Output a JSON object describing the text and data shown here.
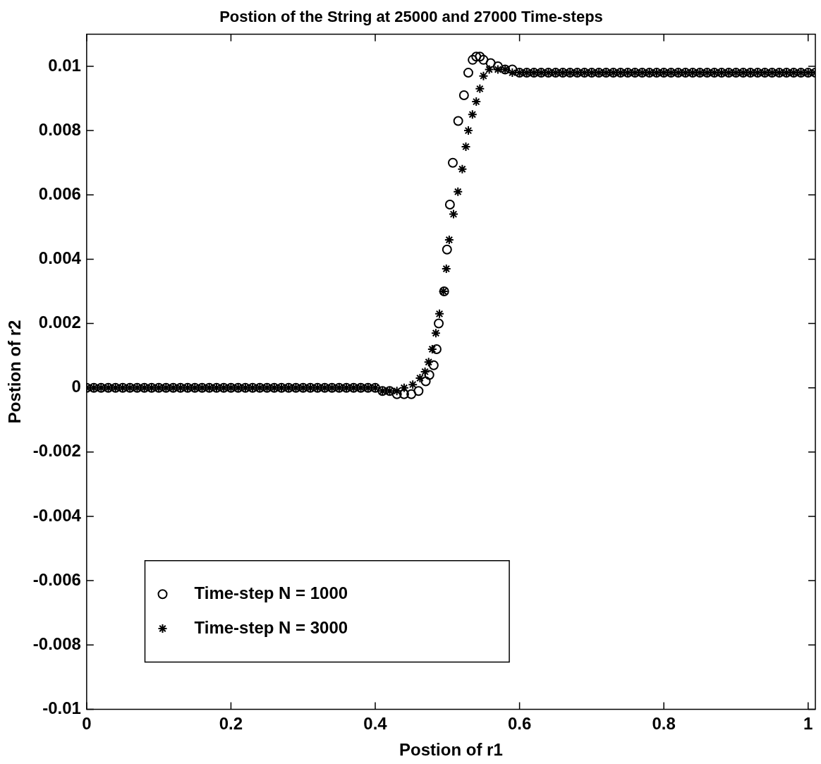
{
  "chart_data": {
    "type": "scatter",
    "title": "Postion of the String at 25000 and 27000 Time-steps",
    "xlabel": "Postion of r1",
    "ylabel": "Postion of r2",
    "xlim": [
      0,
      1.01
    ],
    "ylim": [
      -0.01,
      0.011
    ],
    "xticks": [
      0,
      0.2,
      0.4,
      0.6,
      0.8,
      1
    ],
    "yticks": [
      -0.01,
      -0.008,
      -0.006,
      -0.004,
      -0.002,
      0,
      0.002,
      0.004,
      0.006,
      0.008,
      0.01
    ],
    "grid": false,
    "legend": "bottom left",
    "series": [
      {
        "name": "Time-step N = 1000",
        "color": "#000000",
        "marker": "circle",
        "x": [
          0,
          0.01,
          0.02,
          0.03,
          0.04,
          0.05,
          0.06,
          0.07,
          0.08,
          0.09,
          0.1,
          0.11,
          0.12,
          0.13,
          0.14,
          0.15,
          0.16,
          0.17,
          0.18,
          0.19,
          0.2,
          0.21,
          0.22,
          0.23,
          0.24,
          0.25,
          0.26,
          0.27,
          0.28,
          0.29,
          0.3,
          0.31,
          0.32,
          0.33,
          0.34,
          0.35,
          0.36,
          0.37,
          0.38,
          0.39,
          0.4,
          0.41,
          0.42,
          0.43,
          0.44,
          0.45,
          0.46,
          0.47,
          0.475,
          0.481,
          0.485,
          0.488,
          0.4955,
          0.4995,
          0.5035,
          0.5075,
          0.515,
          0.523,
          0.529,
          0.535,
          0.54,
          0.545,
          0.55,
          0.56,
          0.57,
          0.58,
          0.59,
          0.6,
          0.61,
          0.62,
          0.63,
          0.64,
          0.65,
          0.66,
          0.67,
          0.68,
          0.69,
          0.7,
          0.71,
          0.72,
          0.73,
          0.74,
          0.75,
          0.76,
          0.77,
          0.78,
          0.79,
          0.8,
          0.81,
          0.82,
          0.83,
          0.84,
          0.85,
          0.86,
          0.87,
          0.88,
          0.89,
          0.9,
          0.91,
          0.92,
          0.93,
          0.94,
          0.95,
          0.96,
          0.97,
          0.98,
          0.99,
          1,
          1.01
        ],
        "values": [
          0,
          0,
          0,
          0,
          0,
          0,
          0,
          0,
          0,
          0,
          0,
          0,
          0,
          0,
          0,
          0,
          0,
          0,
          0,
          0,
          0,
          0,
          0,
          0,
          0,
          0,
          0,
          0,
          0,
          0,
          0,
          0,
          0,
          0,
          0,
          0,
          0,
          0,
          0,
          0,
          0,
          -0.0001,
          -0.0001,
          -0.0002,
          -0.0002,
          -0.0002,
          -0.0001,
          0.0002,
          0.0004,
          0.0007,
          0.0012,
          0.002,
          0.003,
          0.0043,
          0.0057,
          0.007,
          0.0083,
          0.0091,
          0.0098,
          0.0102,
          0.0103,
          0.0103,
          0.0102,
          0.0101,
          0.01,
          0.0099,
          0.0099,
          0.0098,
          0.0098,
          0.0098,
          0.0098,
          0.0098,
          0.0098,
          0.0098,
          0.0098,
          0.0098,
          0.0098,
          0.0098,
          0.0098,
          0.0098,
          0.0098,
          0.0098,
          0.0098,
          0.0098,
          0.0098,
          0.0098,
          0.0098,
          0.0098,
          0.0098,
          0.0098,
          0.0098,
          0.0098,
          0.0098,
          0.0098,
          0.0098,
          0.0098,
          0.0098,
          0.0098,
          0.0098,
          0.0098,
          0.0098,
          0.0098,
          0.0098,
          0.0098,
          0.0098,
          0.0098,
          0.0098,
          0.0098,
          0.0098
        ]
      },
      {
        "name": "Time-step N = 3000",
        "color": "#000000",
        "marker": "cross",
        "x": [
          0,
          0.01,
          0.02,
          0.03,
          0.04,
          0.05,
          0.06,
          0.07,
          0.08,
          0.09,
          0.1,
          0.11,
          0.12,
          0.13,
          0.14,
          0.15,
          0.16,
          0.17,
          0.18,
          0.19,
          0.2,
          0.21,
          0.22,
          0.23,
          0.24,
          0.25,
          0.26,
          0.27,
          0.28,
          0.29,
          0.3,
          0.31,
          0.32,
          0.33,
          0.34,
          0.35,
          0.36,
          0.37,
          0.38,
          0.39,
          0.4,
          0.41,
          0.42,
          0.43,
          0.44,
          0.452,
          0.462,
          0.469,
          0.474,
          0.479,
          0.484,
          0.489,
          0.4945,
          0.4985,
          0.5025,
          0.5085,
          0.5146,
          0.5206,
          0.5256,
          0.529,
          0.5347,
          0.54,
          0.545,
          0.55,
          0.558,
          0.57,
          0.58,
          0.59,
          0.6,
          0.61,
          0.62,
          0.63,
          0.64,
          0.65,
          0.66,
          0.67,
          0.68,
          0.69,
          0.7,
          0.71,
          0.72,
          0.73,
          0.74,
          0.75,
          0.76,
          0.77,
          0.78,
          0.79,
          0.8,
          0.81,
          0.82,
          0.83,
          0.84,
          0.85,
          0.86,
          0.87,
          0.88,
          0.89,
          0.9,
          0.91,
          0.92,
          0.93,
          0.94,
          0.95,
          0.96,
          0.97,
          0.98,
          0.99,
          1,
          1.01
        ],
        "values": [
          0,
          0,
          0,
          0,
          0,
          0,
          0,
          0,
          0,
          0,
          0,
          0,
          0,
          0,
          0,
          0,
          0,
          0,
          0,
          0,
          0,
          0,
          0,
          0,
          0,
          0,
          0,
          0,
          0,
          0,
          0,
          0,
          0,
          0,
          0,
          0,
          0,
          0,
          0,
          0,
          0,
          -0.0001,
          -0.0001,
          -0.0001,
          0,
          0.0001,
          0.0003,
          0.0005,
          0.0008,
          0.0012,
          0.0017,
          0.0023,
          0.003,
          0.0037,
          0.0046,
          0.0054,
          0.0061,
          0.0068,
          0.0075,
          0.008,
          0.0085,
          0.0089,
          0.0093,
          0.0097,
          0.0099,
          0.0099,
          0.0099,
          0.0098,
          0.0098,
          0.0098,
          0.0098,
          0.0098,
          0.0098,
          0.0098,
          0.0098,
          0.0098,
          0.0098,
          0.0098,
          0.0098,
          0.0098,
          0.0098,
          0.0098,
          0.0098,
          0.0098,
          0.0098,
          0.0098,
          0.0098,
          0.0098,
          0.0098,
          0.0098,
          0.0098,
          0.0098,
          0.0098,
          0.0098,
          0.0098,
          0.0098,
          0.0098,
          0.0098,
          0.0098,
          0.0098,
          0.0098,
          0.0098,
          0.0098,
          0.0098,
          0.0098,
          0.0098,
          0.0098,
          0.0098,
          0.0098,
          0.0098
        ]
      }
    ]
  }
}
